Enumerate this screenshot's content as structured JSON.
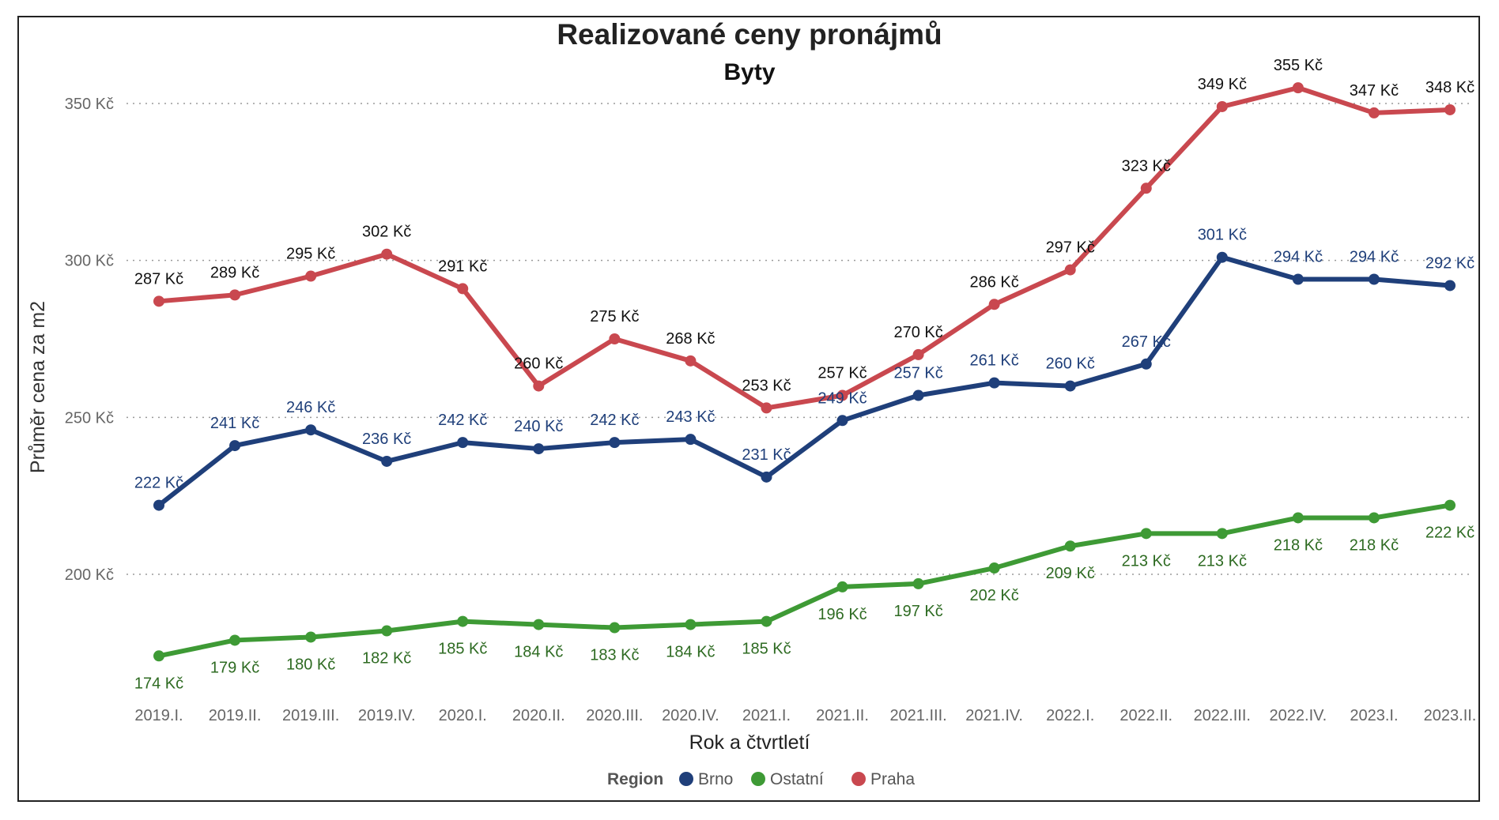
{
  "chart_data": {
    "type": "line",
    "title": "Realizované ceny pronájmů",
    "subtitle": "Byty",
    "xlabel": "Rok a čtvrtletí",
    "ylabel": "Průměr cena za m2",
    "ylim": [
      165,
      362
    ],
    "yticks": [
      200,
      250,
      300,
      350
    ],
    "ytick_labels": [
      "200 Kč",
      "250 Kč",
      "300 Kč",
      "350 Kč"
    ],
    "grid": "horizontal dotted",
    "legend": {
      "title": "Region",
      "position": "bottom-center"
    },
    "categories": [
      "2019.I.",
      "2019.II.",
      "2019.III.",
      "2019.IV.",
      "2020.I.",
      "2020.II.",
      "2020.III.",
      "2020.IV.",
      "2021.I.",
      "2021.II.",
      "2021.III.",
      "2021.IV.",
      "2022.I.",
      "2022.II.",
      "2022.III.",
      "2022.IV.",
      "2023.I.",
      "2023.II."
    ],
    "series": [
      {
        "name": "Brno",
        "color": "#1F3F7A",
        "label_color": "#1F3F7A",
        "values": [
          222,
          241,
          246,
          236,
          242,
          240,
          242,
          243,
          231,
          249,
          257,
          261,
          260,
          267,
          301,
          294,
          294,
          292
        ],
        "labels": [
          "222 Kč",
          "241 Kč",
          "246 Kč",
          "236 Kč",
          "242 Kč",
          "240 Kč",
          "242 Kč",
          "243 Kč",
          "231 Kč",
          "249 Kč",
          "257 Kč",
          "261 Kč",
          "260 Kč",
          "267 Kč",
          "301 Kč",
          "294 Kč",
          "294 Kč",
          "292 Kč"
        ],
        "label_pos": "above"
      },
      {
        "name": "Ostatní",
        "color": "#3E9A35",
        "label_color": "#2E6B22",
        "values": [
          174,
          179,
          180,
          182,
          185,
          184,
          183,
          184,
          185,
          196,
          197,
          202,
          209,
          213,
          213,
          218,
          218,
          222
        ],
        "labels": [
          "174 Kč",
          "179 Kč",
          "180 Kč",
          "182 Kč",
          "185 Kč",
          "184 Kč",
          "183 Kč",
          "184 Kč",
          "185 Kč",
          "196 Kč",
          "197 Kč",
          "202 Kč",
          "209 Kč",
          "213 Kč",
          "213 Kč",
          "218 Kč",
          "218 Kč",
          "222 Kč"
        ],
        "label_pos": "below"
      },
      {
        "name": "Praha",
        "color": "#C9484F",
        "label_color": "#111111",
        "values": [
          287,
          289,
          295,
          302,
          291,
          260,
          275,
          268,
          253,
          257,
          270,
          286,
          297,
          323,
          349,
          355,
          347,
          348
        ],
        "labels": [
          "287 Kč",
          "289 Kč",
          "295 Kč",
          "302 Kč",
          "291 Kč",
          "260 Kč",
          "275 Kč",
          "268 Kč",
          "253 Kč",
          "257 Kč",
          "270 Kč",
          "286 Kč",
          "297 Kč",
          "323 Kč",
          "349 Kč",
          "355 Kč",
          "347 Kč",
          "348 Kč"
        ],
        "label_pos": "above"
      }
    ]
  }
}
